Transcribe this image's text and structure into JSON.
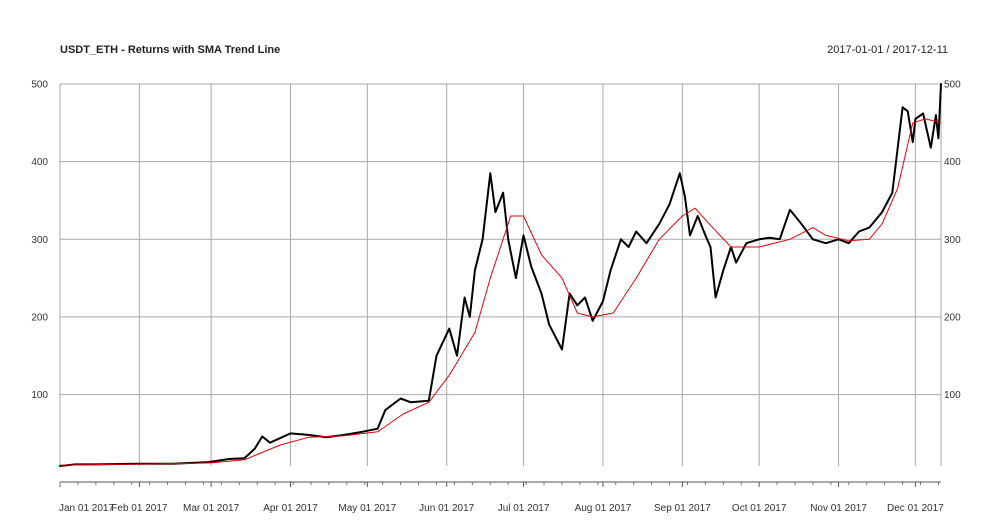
{
  "chart_data": {
    "type": "line",
    "title": "USDT_ETH - Returns with SMA Trend Line",
    "date_range": "2017-01-01 / 2017-12-11",
    "x_ticks": [
      "Jan 01 2017",
      "Feb 01 2017",
      "Mar 01 2017",
      "Apr 01 2017",
      "May 01 2017",
      "Jun 01 2017",
      "Jul 01 2017",
      "Aug 01 2017",
      "Sep 01 2017",
      "Oct 01 2017",
      "Nov 01 2017",
      "Dec 01 2017"
    ],
    "y_ticks": [
      100,
      200,
      300,
      400,
      500
    ],
    "xlim": [
      "2017-01-01",
      "2017-12-11"
    ],
    "ylim": [
      8,
      500
    ],
    "grid": true,
    "series": [
      {
        "color": "#000000",
        "points": [
          [
            "2017-01-01",
            8
          ],
          [
            "2017-01-07",
            10
          ],
          [
            "2017-01-15",
            10
          ],
          [
            "2017-01-31",
            11
          ],
          [
            "2017-02-14",
            11
          ],
          [
            "2017-02-28",
            13
          ],
          [
            "2017-03-08",
            17
          ],
          [
            "2017-03-14",
            18
          ],
          [
            "2017-03-18",
            30
          ],
          [
            "2017-03-21",
            46
          ],
          [
            "2017-03-24",
            38
          ],
          [
            "2017-04-01",
            50
          ],
          [
            "2017-04-08",
            48
          ],
          [
            "2017-04-15",
            45
          ],
          [
            "2017-04-22",
            48
          ],
          [
            "2017-04-29",
            52
          ],
          [
            "2017-05-05",
            56
          ],
          [
            "2017-05-08",
            80
          ],
          [
            "2017-05-14",
            95
          ],
          [
            "2017-05-18",
            90
          ],
          [
            "2017-05-25",
            92
          ],
          [
            "2017-05-28",
            150
          ],
          [
            "2017-06-02",
            185
          ],
          [
            "2017-06-05",
            150
          ],
          [
            "2017-06-08",
            225
          ],
          [
            "2017-06-10",
            200
          ],
          [
            "2017-06-12",
            260
          ],
          [
            "2017-06-15",
            300
          ],
          [
            "2017-06-18",
            385
          ],
          [
            "2017-06-20",
            335
          ],
          [
            "2017-06-23",
            360
          ],
          [
            "2017-06-25",
            300
          ],
          [
            "2017-06-28",
            250
          ],
          [
            "2017-07-01",
            305
          ],
          [
            "2017-07-04",
            265
          ],
          [
            "2017-07-08",
            230
          ],
          [
            "2017-07-11",
            190
          ],
          [
            "2017-07-16",
            158
          ],
          [
            "2017-07-19",
            230
          ],
          [
            "2017-07-22",
            215
          ],
          [
            "2017-07-25",
            225
          ],
          [
            "2017-07-28",
            195
          ],
          [
            "2017-08-01",
            220
          ],
          [
            "2017-08-04",
            260
          ],
          [
            "2017-08-08",
            300
          ],
          [
            "2017-08-11",
            290
          ],
          [
            "2017-08-14",
            310
          ],
          [
            "2017-08-18",
            295
          ],
          [
            "2017-08-23",
            320
          ],
          [
            "2017-08-27",
            345
          ],
          [
            "2017-08-31",
            385
          ],
          [
            "2017-09-02",
            355
          ],
          [
            "2017-09-04",
            305
          ],
          [
            "2017-09-07",
            330
          ],
          [
            "2017-09-10",
            305
          ],
          [
            "2017-09-12",
            290
          ],
          [
            "2017-09-14",
            225
          ],
          [
            "2017-09-17",
            260
          ],
          [
            "2017-09-20",
            290
          ],
          [
            "2017-09-22",
            270
          ],
          [
            "2017-09-26",
            295
          ],
          [
            "2017-10-01",
            300
          ],
          [
            "2017-10-05",
            302
          ],
          [
            "2017-10-09",
            300
          ],
          [
            "2017-10-13",
            338
          ],
          [
            "2017-10-17",
            322
          ],
          [
            "2017-10-22",
            300
          ],
          [
            "2017-10-27",
            295
          ],
          [
            "2017-11-01",
            300
          ],
          [
            "2017-11-05",
            295
          ],
          [
            "2017-11-09",
            310
          ],
          [
            "2017-11-13",
            315
          ],
          [
            "2017-11-18",
            335
          ],
          [
            "2017-11-22",
            360
          ],
          [
            "2017-11-26",
            470
          ],
          [
            "2017-11-28",
            465
          ],
          [
            "2017-11-30",
            425
          ],
          [
            "2017-12-01",
            455
          ],
          [
            "2017-12-04",
            462
          ],
          [
            "2017-12-07",
            418
          ],
          [
            "2017-12-09",
            460
          ],
          [
            "2017-12-10",
            430
          ],
          [
            "2017-12-11",
            500
          ]
        ]
      },
      {
        "color": "#e8000b",
        "points": [
          [
            "2017-01-01",
            9
          ],
          [
            "2017-01-20",
            10
          ],
          [
            "2017-02-14",
            11
          ],
          [
            "2017-03-01",
            12
          ],
          [
            "2017-03-14",
            16
          ],
          [
            "2017-03-28",
            35
          ],
          [
            "2017-04-08",
            45
          ],
          [
            "2017-04-22",
            47
          ],
          [
            "2017-05-05",
            52
          ],
          [
            "2017-05-15",
            75
          ],
          [
            "2017-05-25",
            90
          ],
          [
            "2017-06-02",
            125
          ],
          [
            "2017-06-12",
            180
          ],
          [
            "2017-06-18",
            250
          ],
          [
            "2017-06-26",
            330
          ],
          [
            "2017-07-01",
            330
          ],
          [
            "2017-07-08",
            280
          ],
          [
            "2017-07-16",
            250
          ],
          [
            "2017-07-22",
            205
          ],
          [
            "2017-07-28",
            200
          ],
          [
            "2017-08-05",
            205
          ],
          [
            "2017-08-14",
            250
          ],
          [
            "2017-08-23",
            300
          ],
          [
            "2017-09-01",
            330
          ],
          [
            "2017-09-06",
            340
          ],
          [
            "2017-09-12",
            318
          ],
          [
            "2017-09-20",
            290
          ],
          [
            "2017-10-01",
            290
          ],
          [
            "2017-10-13",
            300
          ],
          [
            "2017-10-22",
            315
          ],
          [
            "2017-10-27",
            305
          ],
          [
            "2017-11-05",
            298
          ],
          [
            "2017-11-13",
            300
          ],
          [
            "2017-11-18",
            320
          ],
          [
            "2017-11-24",
            365
          ],
          [
            "2017-11-30",
            450
          ],
          [
            "2017-12-05",
            455
          ],
          [
            "2017-12-11",
            450
          ]
        ]
      }
    ]
  }
}
